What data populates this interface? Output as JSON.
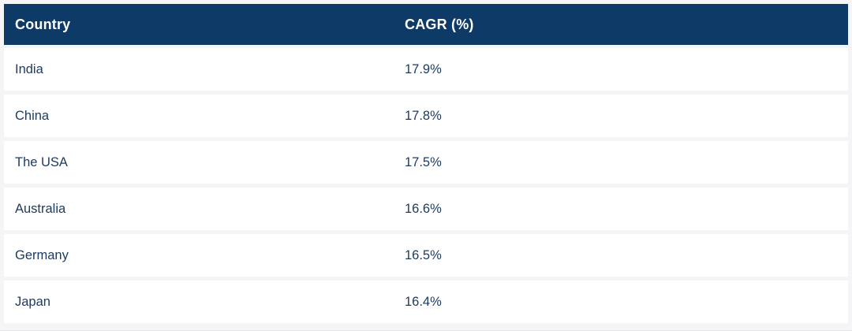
{
  "colors": {
    "header_background": "#0d3a67",
    "header_text": "#ffffff",
    "row_text": "#1d3c60",
    "row_background": "#ffffff",
    "row_separator": "#f5f5f7"
  },
  "table": {
    "headers": [
      "Country",
      "CAGR (%)"
    ],
    "rows": [
      {
        "country": "India",
        "cagr": "17.9%"
      },
      {
        "country": "China",
        "cagr": "17.8%"
      },
      {
        "country": "The USA",
        "cagr": "17.5%"
      },
      {
        "country": "Australia",
        "cagr": "16.6%"
      },
      {
        "country": "Germany",
        "cagr": "16.5%"
      },
      {
        "country": "Japan",
        "cagr": "16.4%"
      }
    ]
  },
  "chart_data": {
    "type": "table",
    "columns": [
      "Country",
      "CAGR (%)"
    ],
    "categories": [
      "India",
      "China",
      "The USA",
      "Australia",
      "Germany",
      "Japan"
    ],
    "values": [
      17.9,
      17.8,
      17.5,
      16.6,
      16.5,
      16.4
    ],
    "unit": "%",
    "title": ""
  }
}
